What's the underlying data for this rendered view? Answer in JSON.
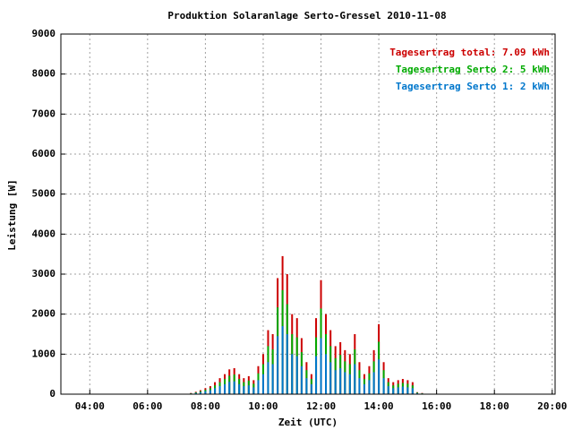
{
  "chart_data": {
    "type": "bar",
    "title": "Produktion Solaranlage Serto-Gressel 2010-11-08",
    "xlabel": "Zeit (UTC)",
    "ylabel": "Leistung [W]",
    "x": [
      7.5,
      7.67,
      7.83,
      8,
      8.17,
      8.33,
      8.5,
      8.67,
      8.83,
      9,
      9.17,
      9.33,
      9.5,
      9.67,
      9.83,
      10,
      10.17,
      10.33,
      10.5,
      10.67,
      10.83,
      11,
      11.17,
      11.33,
      11.5,
      11.67,
      11.83,
      12,
      12.17,
      12.33,
      12.5,
      12.67,
      12.83,
      13,
      13.17,
      13.33,
      13.5,
      13.67,
      13.83,
      14,
      14.17,
      14.33,
      14.5,
      14.67,
      14.83,
      15,
      15.17,
      15.33,
      15.5
    ],
    "series": [
      {
        "name": "Tagesertrag total: 7.09 kWh",
        "color": "#cc0000",
        "values": [
          30,
          60,
          100,
          150,
          200,
          300,
          400,
          500,
          620,
          650,
          500,
          400,
          450,
          350,
          700,
          1000,
          1600,
          1500,
          2900,
          3450,
          3000,
          2000,
          1900,
          1400,
          800,
          500,
          1900,
          2850,
          2000,
          1600,
          1200,
          1300,
          1100,
          1000,
          1500,
          800,
          500,
          700,
          1100,
          1750,
          800,
          400,
          300,
          350,
          380,
          350,
          300,
          50,
          30
        ]
      },
      {
        "name": "Tagesertrag Serto 2: 5 kWh",
        "color": "#00aa00",
        "values": [
          20,
          45,
          75,
          110,
          150,
          220,
          300,
          380,
          460,
          490,
          380,
          300,
          340,
          260,
          520,
          750,
          1200,
          1120,
          2170,
          2600,
          2250,
          1500,
          1420,
          1050,
          600,
          380,
          1420,
          2140,
          1500,
          1200,
          900,
          980,
          820,
          750,
          1120,
          600,
          380,
          520,
          820,
          1310,
          600,
          300,
          220,
          260,
          280,
          260,
          220,
          40,
          20
        ]
      },
      {
        "name": "Tagesertrag Serto 1: 2 kWh",
        "color": "#0077cc",
        "values": [
          15,
          30,
          50,
          75,
          100,
          150,
          200,
          250,
          310,
          320,
          250,
          200,
          220,
          170,
          350,
          500,
          800,
          750,
          1450,
          1700,
          1500,
          1000,
          950,
          700,
          400,
          250,
          950,
          1400,
          1000,
          800,
          600,
          650,
          550,
          500,
          750,
          400,
          250,
          350,
          550,
          870,
          400,
          200,
          150,
          170,
          190,
          170,
          150,
          25,
          15
        ]
      }
    ],
    "xlim": [
      3,
      20.1
    ],
    "xticks": [
      {
        "value": 4,
        "label": "04:00"
      },
      {
        "value": 6,
        "label": "06:00"
      },
      {
        "value": 8,
        "label": "08:00"
      },
      {
        "value": 10,
        "label": "10:00"
      },
      {
        "value": 12,
        "label": "12:00"
      },
      {
        "value": 14,
        "label": "14:00"
      },
      {
        "value": 16,
        "label": "16:00"
      },
      {
        "value": 18,
        "label": "18:00"
      },
      {
        "value": 20,
        "label": "20:00"
      }
    ],
    "ylim": [
      0,
      9000
    ],
    "yticks": [
      0,
      1000,
      2000,
      3000,
      4000,
      5000,
      6000,
      7000,
      8000,
      9000
    ],
    "grid": true,
    "legend": "upper right"
  }
}
